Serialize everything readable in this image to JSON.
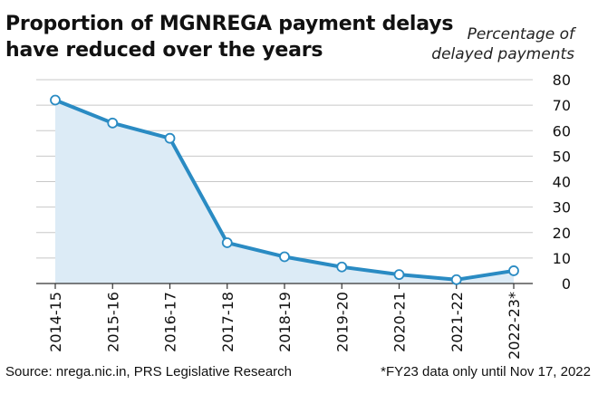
{
  "chart_data": {
    "type": "area",
    "title_lines": [
      "Proportion of MGNREGA payment delays",
      "have reduced over the years"
    ],
    "ylabel_lines": [
      "Percentage of",
      "delayed payments"
    ],
    "categories": [
      "2014-15",
      "2015-16",
      "2016-17",
      "2017-18",
      "2018-19",
      "2019-20",
      "2020-21",
      "2021-22",
      "2022-23*"
    ],
    "values": [
      72,
      63,
      57,
      16,
      10.5,
      6.5,
      3.5,
      1.5,
      5
    ],
    "ylim": [
      0,
      80
    ],
    "yticks": [
      "0",
      "10",
      "20",
      "30",
      "40",
      "50",
      "60",
      "70",
      "80"
    ],
    "grid": true,
    "axis_position": "right"
  },
  "footer": {
    "source": "Source: nrega.nic.in, PRS Legislative Research",
    "note": "*FY23 data only until Nov 17, 2022"
  },
  "colors": {
    "line": "#2a8bc3",
    "fill": "#dcebf6",
    "grid": "#c8c8c8",
    "marker_fill": "#ffffff"
  }
}
